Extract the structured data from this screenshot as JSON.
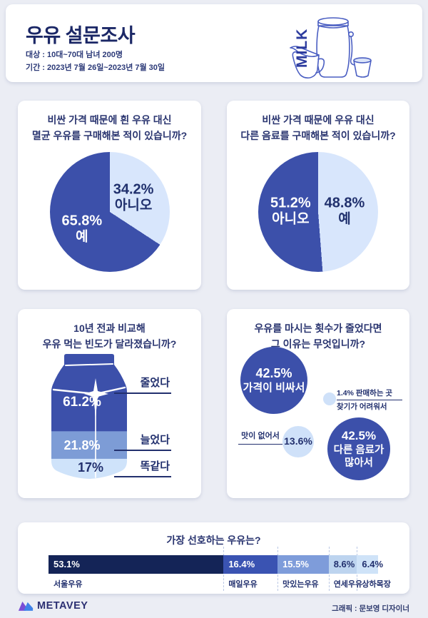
{
  "header": {
    "title": "우유 설문조사",
    "target": "대상 : 10대~70대 남녀 200명",
    "period": "기간 : 2023년 7월 26일~2023년 7월 30일",
    "illustration_label": "MILK"
  },
  "colors": {
    "page_bg": "#ebedf4",
    "card_bg": "#ffffff",
    "navy_text": "#22306e",
    "pie_dark": "#3c50aa",
    "pie_light": "#d8e6fc",
    "bubble_light": "#cfe1f9",
    "carton_bands": [
      "#3c50aa",
      "#7d9cd6",
      "#cfe3fa"
    ],
    "illustration_stroke": "#4a5ec2"
  },
  "chart_data": [
    {
      "type": "pie",
      "title_line1": "비싼 가격 때문에 흰 우유 대신",
      "title_line2": "멸균 우유를 구매해본 적이 있습니까?",
      "unit": "%",
      "slices": [
        {
          "label": "아니오",
          "value": 34.2,
          "pct": "34.2%",
          "color": "#d8e6fc"
        },
        {
          "label": "예",
          "value": 65.8,
          "pct": "65.8%",
          "color": "#3c50aa"
        }
      ]
    },
    {
      "type": "pie",
      "title_line1": "비싼 가격 때문에 우유 대신",
      "title_line2": "다른 음료를 구매해본 적이 있습니까?",
      "unit": "%",
      "slices": [
        {
          "label": "예",
          "value": 48.8,
          "pct": "48.8%",
          "color": "#d8e6fc"
        },
        {
          "label": "아니오",
          "value": 51.2,
          "pct": "51.2%",
          "color": "#3c50aa"
        }
      ]
    },
    {
      "type": "bar",
      "subtype": "pictorial-milk-carton",
      "title_line1": "10년 전과 비교해",
      "title_line2": "우유 먹는 빈도가 달라졌습니까?",
      "unit": "%",
      "categories": [
        "줄었다",
        "늘었다",
        "똑같다"
      ],
      "values": [
        61.2,
        21.8,
        17
      ],
      "pcts": [
        "61.2%",
        "21.8%",
        "17%"
      ]
    },
    {
      "type": "bubble",
      "title_line1": "우유를 마시는 횟수가 줄었다면",
      "title_line2": "그 이유는 무엇입니까?",
      "unit": "%",
      "bubbles": [
        {
          "value": 42.5,
          "pct": "42.5%",
          "label": "가격이 비싸서"
        },
        {
          "value": 1.4,
          "label_line1": "1.4% 판매하는 곳",
          "label_line2": "찾기가 어려워서"
        },
        {
          "value": 13.6,
          "pct": "13.6%",
          "label": "맛이 없어서"
        },
        {
          "value": 42.5,
          "pct": "42.5%",
          "label_line1": "다른 음료가",
          "label_line2": "많아서"
        }
      ]
    },
    {
      "type": "bar",
      "subtype": "stacked-horizontal",
      "title": "가장 선호하는 우유는?",
      "unit": "%",
      "segments": [
        {
          "label": "서울우유",
          "value": 53.1,
          "pct": "53.1%",
          "color": "#142457",
          "text_color": "#ffffff"
        },
        {
          "label": "매일우유",
          "value": 16.4,
          "pct": "16.4%",
          "color": "#3a53b2",
          "text_color": "#ffffff"
        },
        {
          "label": "맛있는우유",
          "value": 15.5,
          "pct": "15.5%",
          "color": "#7e9cda",
          "text_color": "#ffffff"
        },
        {
          "label": "연세우유",
          "value": 8.6,
          "pct": "8.6%",
          "color": "#bdd4ef",
          "text_color": "#22306e"
        },
        {
          "label": "상하목장",
          "value": 6.4,
          "pct": "6.4%",
          "color": "#cfe3f8",
          "text_color": "#22306e"
        }
      ]
    }
  ],
  "footer": {
    "logo_text": "METAVEY",
    "credit": "그래픽 : 문보영 디자이너"
  }
}
